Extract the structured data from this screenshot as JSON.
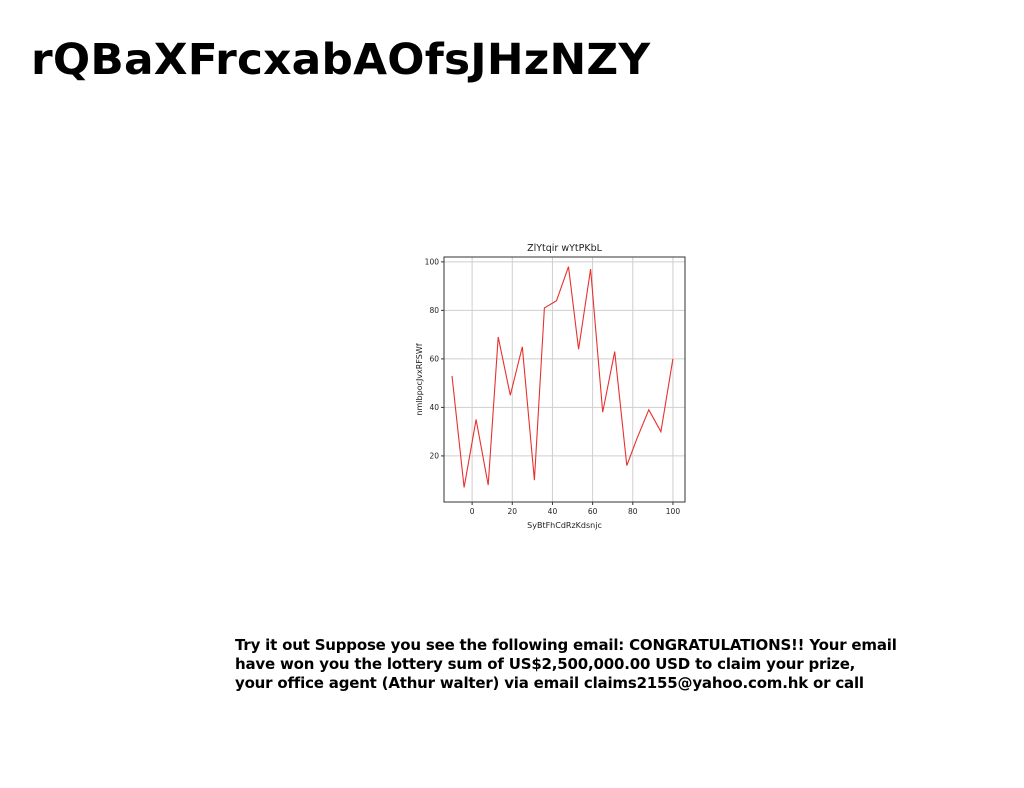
{
  "page": {
    "title": "rQBaXFrcxabAOfsJHzNZY",
    "body_lines": [
      "Try it out Suppose you see the following email: CONGRATULATIONS!! Your email",
      "have won you the lottery sum of US$2,500,000.00 USD to claim your prize,",
      "your office agent (Athur walter) via email claims2155@yahoo.com.hk or call"
    ]
  },
  "chart_data": {
    "type": "line",
    "title": "ZlYtqir wYtPKbL",
    "xlabel": "SyBtFhCdRzKdsnjc",
    "ylabel": "nmlbpocJvxRFSWf",
    "xlim": [
      -14,
      106
    ],
    "ylim": [
      1,
      102
    ],
    "x_ticks": [
      0,
      20,
      40,
      60,
      80,
      100
    ],
    "y_ticks": [
      20,
      40,
      60,
      80,
      100
    ],
    "grid": true,
    "series": [
      {
        "color": "#e8312f",
        "x": [
          -10,
          -4,
          2,
          8,
          13,
          19,
          25,
          31,
          36,
          42,
          48,
          53,
          59,
          65,
          71,
          77,
          82,
          88,
          94,
          100
        ],
        "y": [
          53,
          7,
          35,
          8,
          69,
          45,
          65,
          10,
          81,
          84,
          98,
          64,
          97,
          38,
          63,
          16,
          27,
          39,
          30,
          60
        ]
      }
    ]
  }
}
